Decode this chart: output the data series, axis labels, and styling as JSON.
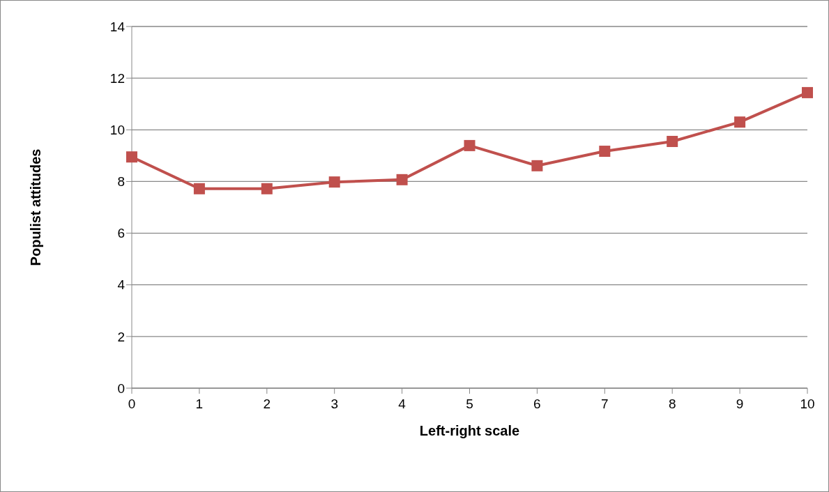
{
  "chart_data": {
    "type": "line",
    "xlabel": "Left-right scale",
    "ylabel": "Populist attitudes",
    "categories": [
      "0",
      "1",
      "2",
      "3",
      "4",
      "5",
      "6",
      "7",
      "8",
      "9",
      "10"
    ],
    "series": [
      {
        "color": "#c0504d",
        "values": [
          8.95,
          7.72,
          7.72,
          7.98,
          8.07,
          9.39,
          8.61,
          9.17,
          9.55,
          10.3,
          11.44
        ]
      }
    ],
    "ylim": [
      0,
      14
    ],
    "yticks": [
      0,
      2,
      4,
      6,
      8,
      10,
      12,
      14
    ],
    "grid": "y",
    "legend": false,
    "marker": "square",
    "line_style": "solid"
  }
}
